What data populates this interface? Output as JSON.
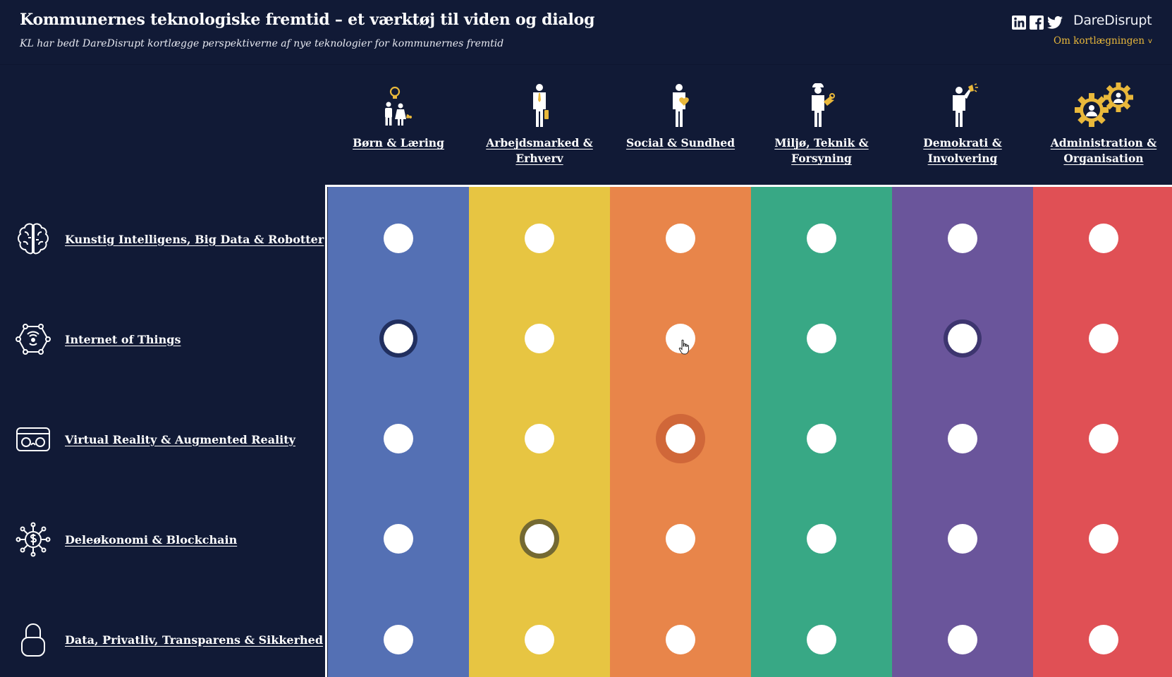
{
  "header": {
    "title": "Kommunernes teknologiske fremtid – et værktøj til viden og dialog",
    "subtitle": "KL har bedt DareDisrupt kortlægge perspektiverne af nye teknologier for kommunernes fremtid",
    "brand": "DareDisrupt",
    "about_label": "Om kortlægningen",
    "about_chevron": "v",
    "social": [
      "linkedin-icon",
      "facebook-icon",
      "twitter-icon"
    ]
  },
  "categories": [
    {
      "id": "born",
      "label": "Børn & Læring",
      "color": "#5470b4",
      "icon": "children-lightbulb-icon"
    },
    {
      "id": "arbejd",
      "label": "Arbejdsmarked & Erhverv",
      "color": "#e7c542",
      "icon": "businessman-icon"
    },
    {
      "id": "social",
      "label": "Social & Sundhed",
      "color": "#e8854a",
      "icon": "person-heart-icon"
    },
    {
      "id": "miljo",
      "label": "Miljø, Teknik & Forsyning",
      "color": "#38a885",
      "icon": "worker-wrench-icon"
    },
    {
      "id": "demokrati",
      "label": "Demokrati & Involvering",
      "color": "#6a559b",
      "icon": "person-megaphone-icon"
    },
    {
      "id": "admin",
      "label": "Administration & Organisation",
      "color": "#e05055",
      "icon": "gears-people-icon"
    }
  ],
  "rows": [
    {
      "id": "ai",
      "label": "Kunstig Intelligens, Big Data & Robotter",
      "icon": "brain-icon"
    },
    {
      "id": "iot",
      "label": "Internet of Things",
      "icon": "iot-network-icon"
    },
    {
      "id": "vr",
      "label": "Virtual Reality & Augmented Reality",
      "icon": "vr-headset-icon"
    },
    {
      "id": "dele",
      "label": "Deleøkonomi & Blockchain",
      "icon": "dollar-network-icon"
    },
    {
      "id": "data",
      "label": "Data, Privatliv, Transparens & Sikkerhed",
      "icon": "padlock-icon"
    }
  ],
  "highlights": [
    {
      "row": 1,
      "col": 0,
      "style": "ring-navy"
    },
    {
      "row": 1,
      "col": 4,
      "style": "ring-purple"
    },
    {
      "row": 2,
      "col": 2,
      "style": "halo"
    },
    {
      "row": 3,
      "col": 1,
      "style": "ring-olive"
    }
  ],
  "cursor": "hand-pointer-icon"
}
